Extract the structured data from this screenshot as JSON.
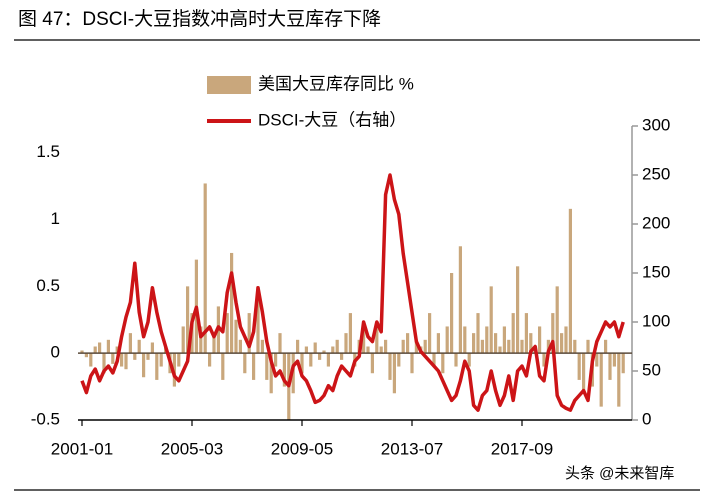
{
  "chart_data": {
    "type": "bar-line",
    "title": "图 47：DSCI-大豆指数冲高时大豆库存下降",
    "watermark": "头条 @未来智库",
    "categories": [
      "2001-01",
      null,
      null,
      null,
      null,
      null,
      null,
      null,
      null,
      null,
      null,
      null,
      null,
      null,
      null,
      null,
      null,
      null,
      null,
      null,
      null,
      null,
      null,
      null,
      null,
      "2005-03",
      null,
      null,
      null,
      null,
      null,
      null,
      null,
      null,
      null,
      null,
      null,
      null,
      null,
      null,
      null,
      null,
      null,
      null,
      null,
      null,
      null,
      null,
      null,
      null,
      "2009-05",
      null,
      null,
      null,
      null,
      null,
      null,
      null,
      null,
      null,
      null,
      null,
      null,
      null,
      null,
      null,
      null,
      null,
      null,
      null,
      null,
      null,
      null,
      null,
      null,
      "2013-07",
      null,
      null,
      null,
      null,
      null,
      null,
      null,
      null,
      null,
      null,
      null,
      null,
      null,
      null,
      null,
      null,
      null,
      null,
      null,
      null,
      null,
      null,
      null,
      null,
      "2017-09",
      null,
      null,
      null,
      null,
      null,
      null,
      null,
      null,
      null,
      null,
      null,
      null,
      null,
      null,
      null,
      null,
      null,
      null,
      null,
      null,
      null,
      null,
      null
    ],
    "series": [
      {
        "name": "美国大豆库存同比 %",
        "type": "bar",
        "color": "#c9a77c",
        "values": [
          0.02,
          -0.03,
          -0.1,
          0.05,
          0.08,
          -0.15,
          0.1,
          -0.08,
          0.05,
          -0.1,
          -0.12,
          0.15,
          -0.05,
          0.1,
          -0.18,
          -0.05,
          0.08,
          -0.2,
          -0.1,
          0.05,
          -0.15,
          -0.25,
          -0.1,
          0.2,
          0.5,
          0.3,
          0.7,
          0.2,
          1.27,
          -0.1,
          0.15,
          0.35,
          -0.2,
          0.3,
          0.75,
          0.25,
          0.1,
          -0.15,
          0.3,
          -0.2,
          0.5,
          0.1,
          -0.2,
          -0.3,
          -0.1,
          0.15,
          -0.25,
          -0.5,
          -0.3,
          0.1,
          -0.15,
          0.05,
          -0.1,
          0.08,
          -0.05,
          0.02,
          -0.1,
          0.05,
          0.1,
          -0.05,
          0.15,
          0.3,
          -0.1,
          0.1,
          0.2,
          0.05,
          -0.15,
          0.2,
          0.05,
          0.1,
          -0.2,
          -0.3,
          -0.1,
          0.1,
          0.15,
          -0.15,
          0.1,
          0.05,
          0.1,
          0.3,
          -0.1,
          0.15,
          -0.15,
          0.2,
          0.6,
          -0.1,
          0.8,
          0.2,
          -0.1,
          0.15,
          0.3,
          0.1,
          0.2,
          0.5,
          0.15,
          0.05,
          0.2,
          0.1,
          0.3,
          0.65,
          0.1,
          0.3,
          0.15,
          0.05,
          0.2,
          -0.1,
          0.1,
          0.3,
          0.5,
          0.15,
          0.2,
          1.08,
          0.1,
          -0.2,
          -0.3,
          0.1,
          -0.25,
          -0.1,
          -0.4,
          0.1,
          -0.2,
          -0.1,
          -0.4,
          -0.15
        ]
      },
      {
        "name": "DSCI-大豆（右轴）",
        "type": "line",
        "axis": "y2",
        "color": "#cc1417",
        "values": [
          40,
          28,
          45,
          52,
          40,
          50,
          55,
          48,
          60,
          85,
          105,
          120,
          160,
          110,
          85,
          100,
          135,
          110,
          90,
          75,
          60,
          45,
          40,
          50,
          60,
          100,
          115,
          85,
          90,
          95,
          85,
          95,
          90,
          130,
          150,
          120,
          95,
          85,
          75,
          90,
          135,
          110,
          80,
          60,
          45,
          50,
          40,
          35,
          55,
          60,
          45,
          40,
          30,
          18,
          20,
          25,
          35,
          30,
          45,
          55,
          50,
          45,
          60,
          65,
          100,
          85,
          80,
          100,
          90,
          230,
          250,
          225,
          210,
          170,
          140,
          110,
          80,
          70,
          65,
          60,
          55,
          50,
          40,
          30,
          20,
          25,
          40,
          60,
          50,
          15,
          10,
          25,
          30,
          50,
          30,
          15,
          25,
          45,
          20,
          50,
          55,
          45,
          70,
          75,
          45,
          40,
          70,
          80,
          25,
          15,
          12,
          10,
          20,
          25,
          30,
          20,
          60,
          80,
          90,
          100,
          95,
          100,
          85,
          100
        ]
      }
    ],
    "ylim": [
      -0.5,
      1.7
    ],
    "yticks": [
      -0.5,
      0,
      0.5,
      1,
      1.5
    ],
    "y2lim": [
      0,
      300
    ],
    "y2ticks": [
      0,
      50,
      100,
      150,
      200,
      250,
      300
    ]
  }
}
